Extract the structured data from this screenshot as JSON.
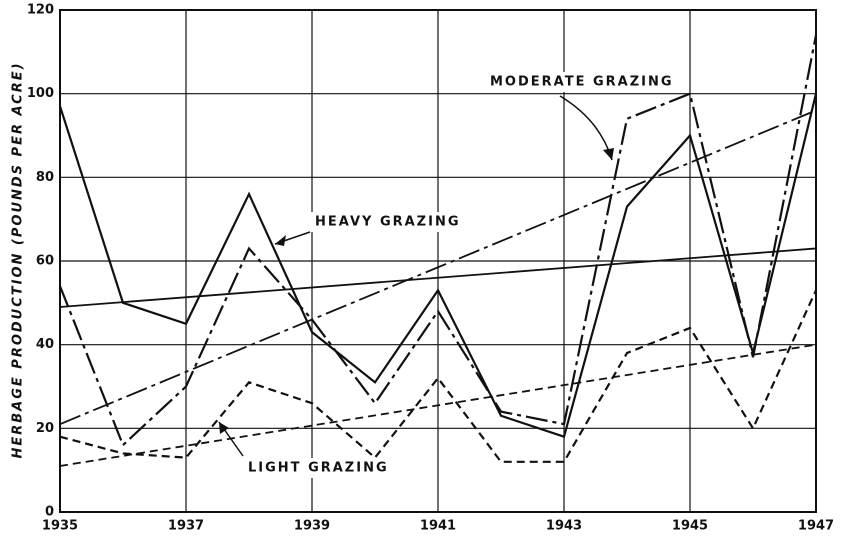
{
  "chart_data": {
    "type": "line",
    "y_label": "HERBAGE PRODUCTION (POUNDS PER ACRE)",
    "x": [
      1935,
      1936,
      1937,
      1938,
      1939,
      1940,
      1941,
      1942,
      1943,
      1944,
      1945,
      1946,
      1947
    ],
    "xlim": [
      1935,
      1947
    ],
    "xticks": [
      1935,
      1937,
      1939,
      1941,
      1943,
      1945,
      1947
    ],
    "ylim": [
      0,
      120
    ],
    "yticks": [
      0,
      20,
      40,
      60,
      80,
      100,
      120
    ],
    "grid": true,
    "series": [
      {
        "name": "HEAVY GRAZING",
        "color": "#111111",
        "dash": "none",
        "values": [
          97,
          50,
          45,
          76,
          43,
          31,
          53,
          23,
          18,
          73,
          90,
          38,
          100
        ],
        "trend": [
          49,
          63
        ]
      },
      {
        "name": "MODERATE GRAZING",
        "color": "#111111",
        "dash": "22 5 4 5",
        "values": [
          54,
          16,
          30,
          63,
          46,
          26,
          48,
          24,
          21,
          94,
          100,
          37,
          114
        ],
        "trend": [
          21,
          96
        ]
      },
      {
        "name": "LIGHT GRAZING",
        "color": "#111111",
        "dash": "8 5",
        "values": [
          18,
          14,
          13,
          31,
          26,
          13,
          32,
          12,
          12,
          38,
          44,
          20,
          53
        ],
        "trend": [
          11,
          40
        ]
      }
    ]
  }
}
